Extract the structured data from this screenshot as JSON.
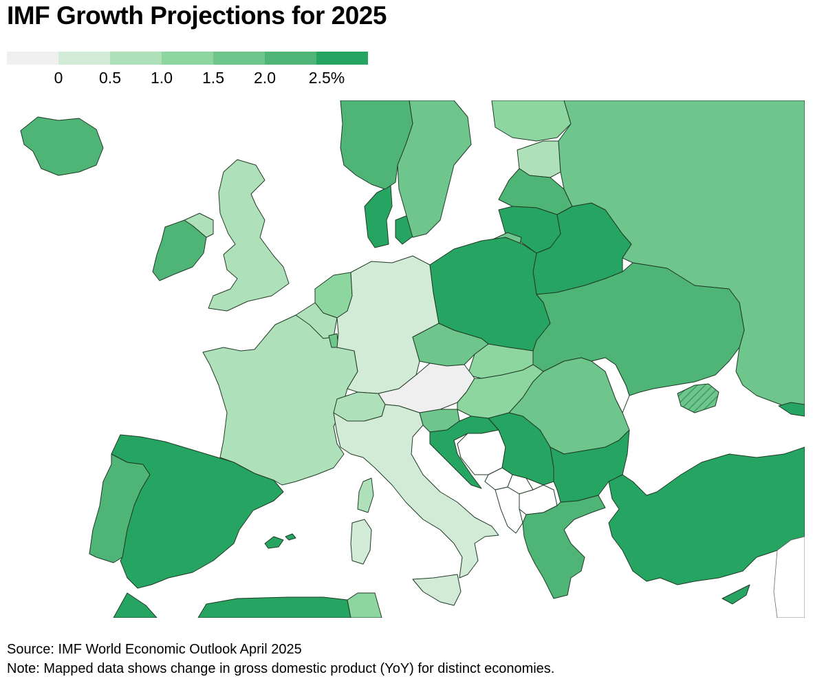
{
  "title": "IMF Growth Projections for 2025",
  "legend": {
    "bins": [
      "#efefef",
      "#d2ebd6",
      "#aee0ba",
      "#8ed6a0",
      "#6ec68c",
      "#4fb577",
      "#26a462"
    ],
    "ticks": [
      "0",
      "0.5",
      "1.0",
      "1.5",
      "2.0",
      "2.5%"
    ]
  },
  "colors": {
    "no_data": "#ffffff",
    "sea": "#ffffff",
    "border": "#1f3a24",
    "hatch": "#4fb577"
  },
  "map": {
    "countries": [
      {
        "name": "Iceland",
        "bin": 5
      },
      {
        "name": "Norway",
        "bin": 5
      },
      {
        "name": "Sweden",
        "bin": 4
      },
      {
        "name": "Finland",
        "bin": 3
      },
      {
        "name": "Estonia",
        "bin": 2
      },
      {
        "name": "Latvia",
        "bin": 5
      },
      {
        "name": "Lithuania",
        "bin": 6
      },
      {
        "name": "Russia",
        "bin": 4
      },
      {
        "name": "Denmark",
        "bin": 6
      },
      {
        "name": "United Kingdom",
        "bin": 2
      },
      {
        "name": "Ireland",
        "bin": 5
      },
      {
        "name": "Northern Ireland",
        "bin": 2
      },
      {
        "name": "Netherlands",
        "bin": 3
      },
      {
        "name": "Belgium",
        "bin": 2
      },
      {
        "name": "Luxembourg",
        "bin": 4
      },
      {
        "name": "Germany",
        "bin": 1
      },
      {
        "name": "Poland",
        "bin": 6
      },
      {
        "name": "Belarus",
        "bin": 6
      },
      {
        "name": "Ukraine",
        "bin": 5
      },
      {
        "name": "France",
        "bin": 2
      },
      {
        "name": "Switzerland",
        "bin": 2
      },
      {
        "name": "Austria",
        "bin": 0
      },
      {
        "name": "Czechia",
        "bin": 4
      },
      {
        "name": "Slovakia",
        "bin": 3
      },
      {
        "name": "Hungary",
        "bin": 3
      },
      {
        "name": "Romania",
        "bin": 4
      },
      {
        "name": "Moldova",
        "bin": -1
      },
      {
        "name": "Slovenia",
        "bin": 4
      },
      {
        "name": "Croatia",
        "bin": 6
      },
      {
        "name": "Bosnia and Herzegovina",
        "bin": -1
      },
      {
        "name": "Serbia",
        "bin": 6
      },
      {
        "name": "Montenegro",
        "bin": -1
      },
      {
        "name": "Kosovo",
        "bin": -1
      },
      {
        "name": "Albania",
        "bin": -1
      },
      {
        "name": "North Macedonia",
        "bin": -1
      },
      {
        "name": "Bulgaria",
        "bin": 6
      },
      {
        "name": "Greece",
        "bin": 5
      },
      {
        "name": "Turkey",
        "bin": 6
      },
      {
        "name": "Cyprus",
        "bin": 6
      },
      {
        "name": "Italy",
        "bin": 1
      },
      {
        "name": "Sardinia",
        "bin": 1
      },
      {
        "name": "Corsica",
        "bin": 2
      },
      {
        "name": "Sicily",
        "bin": 1
      },
      {
        "name": "Spain",
        "bin": 6
      },
      {
        "name": "Balearic Islands",
        "bin": 6
      },
      {
        "name": "Portugal",
        "bin": 5
      },
      {
        "name": "Morocco",
        "bin": 6
      },
      {
        "name": "Algeria",
        "bin": 6
      },
      {
        "name": "Tunisia",
        "bin": 3
      },
      {
        "name": "Georgia",
        "bin": 6
      },
      {
        "name": "Crimea",
        "bin": 5
      },
      {
        "name": "Syria",
        "bin": -1
      },
      {
        "name": "Lebanon",
        "bin": -1
      }
    ]
  },
  "footer": {
    "source": "Source: IMF World Economic Outlook April 2025",
    "note": "Note: Mapped data shows change in gross domestic product (YoY) for distinct economies."
  }
}
